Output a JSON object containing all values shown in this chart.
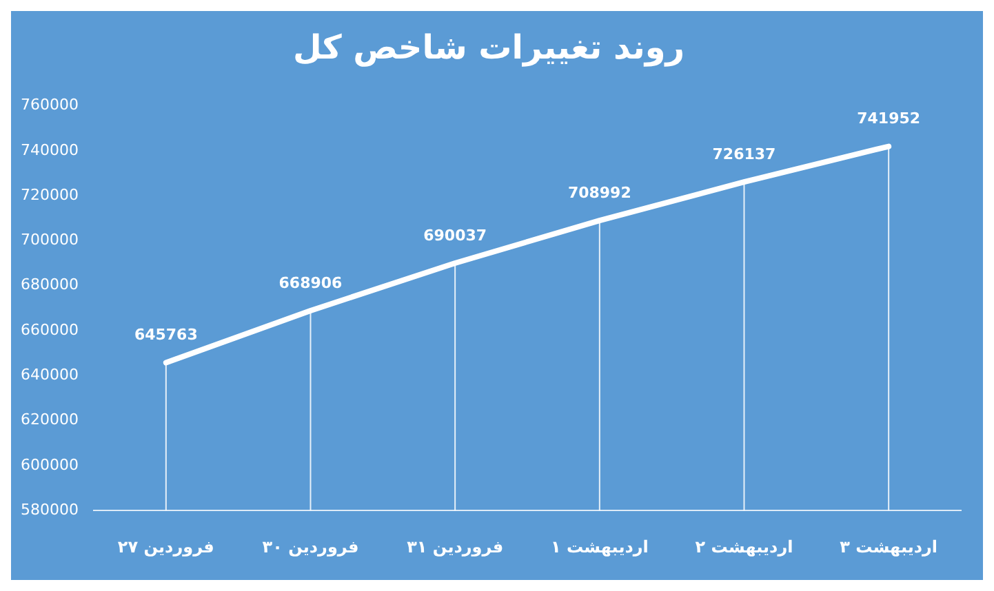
{
  "chart_data": {
    "type": "line",
    "title": "روند تغییرات شاخص کل",
    "categories": [
      "۲۷ فروردین",
      "۳۰ فروردین",
      "۳۱ فروردین",
      "۱ اردیبهشت",
      "۲ اردیبهشت",
      "۳ اردیبهشت"
    ],
    "series": [
      {
        "color": "#ffffff",
        "values": [
          645763,
          668906,
          690037,
          708992,
          726137,
          741952
        ]
      }
    ],
    "ylim": [
      580000,
      760000
    ],
    "yticks": [
      580000,
      600000,
      620000,
      640000,
      660000,
      680000,
      700000,
      720000,
      740000,
      760000
    ],
    "grid": "x",
    "legend": false,
    "marker": "none",
    "line_style": "solid",
    "data_labels": true
  }
}
